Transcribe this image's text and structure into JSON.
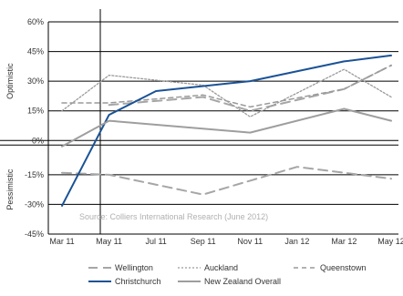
{
  "chart_data": {
    "type": "line",
    "categories": [
      "Mar 11",
      "May 11",
      "Jul 11",
      "Sep 11",
      "Nov 11",
      "Jan 12",
      "Mar 12",
      "May 12"
    ],
    "yticks": [
      "60%",
      "45%",
      "30%",
      "15%",
      "0%",
      "-15%",
      "-30%",
      "-45%"
    ],
    "ylim": [
      -45,
      60
    ],
    "side_labels": {
      "upper": "Optimistic",
      "lower": "Pessimistic"
    },
    "source": "Source: Colliers International Research (June 2012)",
    "legend_placement": "bottom",
    "series": [
      {
        "name": "Wellington",
        "style": "dashed",
        "color": "#a6a6a6",
        "upper": [
          null,
          18,
          null,
          22,
          15,
          null,
          26,
          38
        ],
        "lower": [
          -14,
          -15,
          null,
          -25,
          -18,
          -11,
          null,
          -17
        ]
      },
      {
        "name": "Auckland",
        "style": "dotted",
        "color": "#9a9a9a",
        "upper": [
          15,
          33,
          null,
          28,
          12,
          null,
          36,
          22
        ]
      },
      {
        "name": "Queenstown",
        "style": "dashed-fine",
        "color": "#9a9a9a",
        "upper": [
          19,
          19,
          null,
          23,
          17,
          null,
          26,
          38
        ]
      },
      {
        "name": "Christchurch",
        "style": "solid",
        "color": "#1a5296",
        "upper": [
          -33,
          13,
          25,
          null,
          30,
          null,
          40,
          43
        ]
      },
      {
        "name": "New Zealand Overall",
        "style": "solid",
        "color": "#9e9e9e",
        "upper": [
          -3,
          10,
          null,
          null,
          4,
          null,
          16,
          10
        ]
      }
    ]
  }
}
